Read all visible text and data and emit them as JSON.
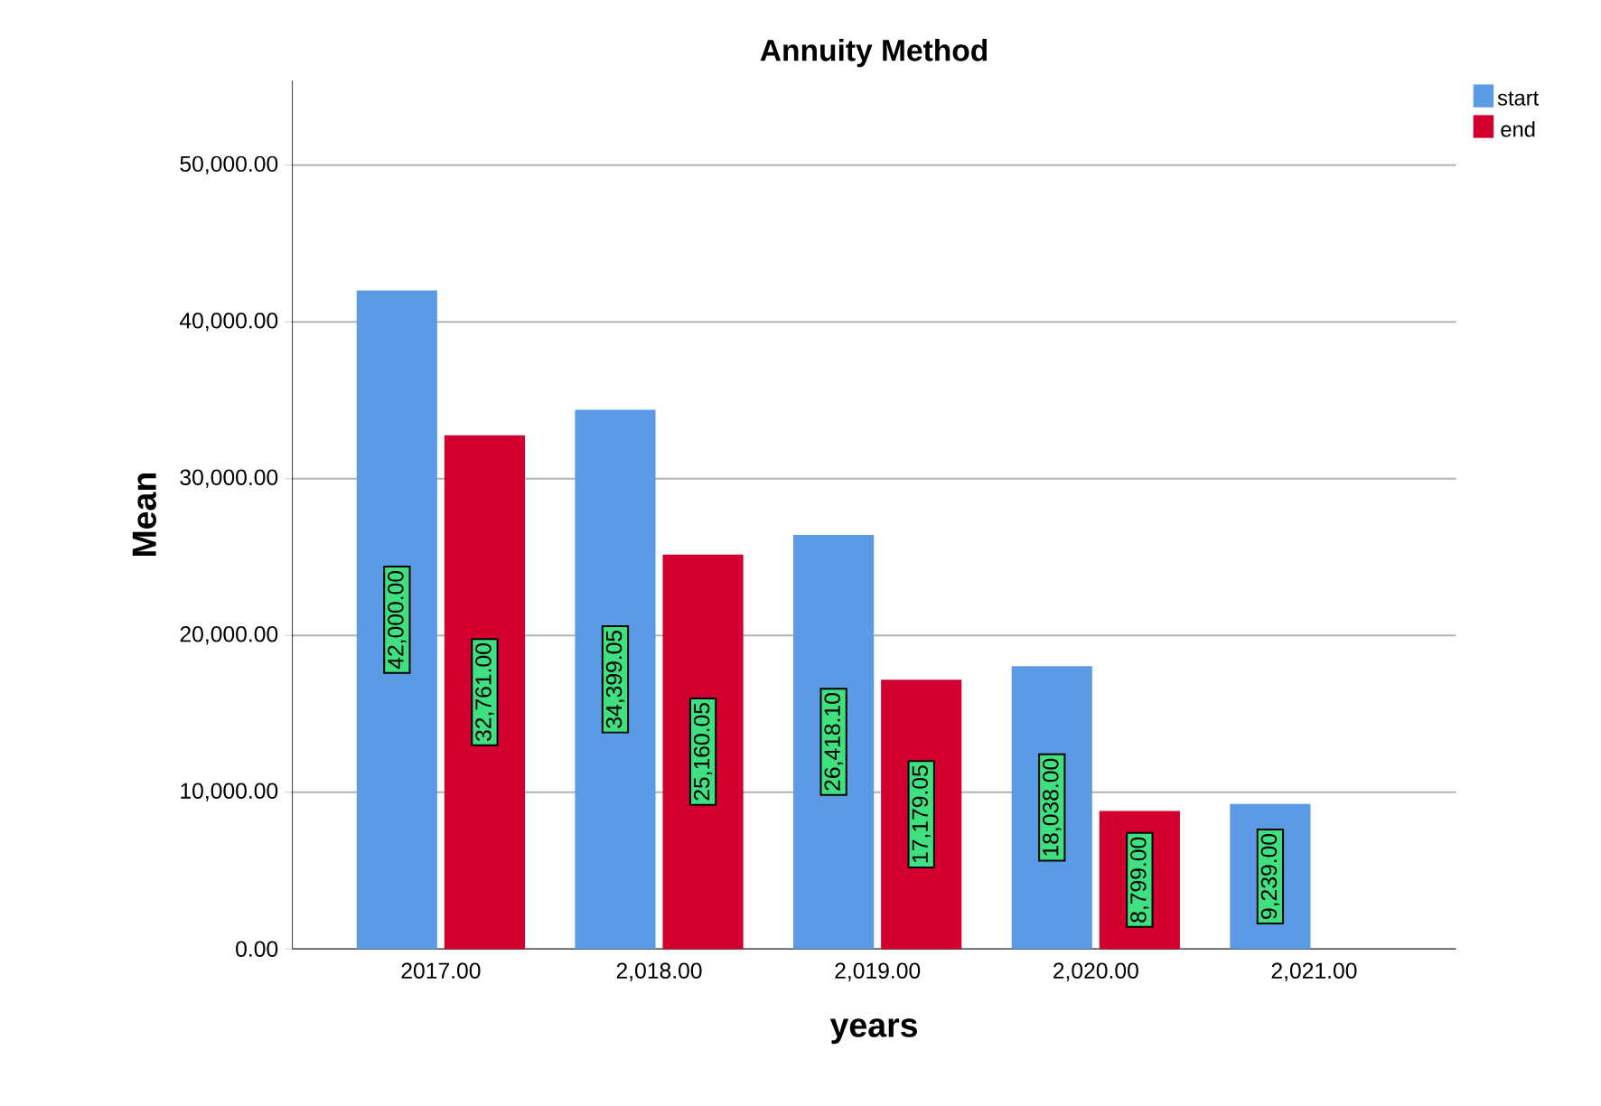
{
  "chart_data": {
    "type": "bar",
    "title": "Annuity Method",
    "xlabel": "years",
    "ylabel": "Mean",
    "categories": [
      "2017.00",
      "2,018.00",
      "2,019.00",
      "2,020.00",
      "2,021.00"
    ],
    "series": [
      {
        "name": "start",
        "color": "#5b9be6",
        "values": [
          42000,
          34399.05,
          26418.1,
          18038,
          9239
        ],
        "value_labels": [
          "42,000.00",
          "34,399.05",
          "26,418.10",
          "18,038.00",
          "9,239.00"
        ]
      },
      {
        "name": "end",
        "color": "#d2002f",
        "values": [
          32761,
          25160.05,
          17179.05,
          8799,
          null
        ],
        "value_labels": [
          "32,761.00",
          "25,160.05",
          "17,179.05",
          "8,799.00",
          null
        ]
      }
    ],
    "ylim": [
      0,
      55400
    ],
    "yticks": [
      {
        "value": 0,
        "label": "0.00"
      },
      {
        "value": 10000,
        "label": "10,000.00"
      },
      {
        "value": 20000,
        "label": "20,000.00"
      },
      {
        "value": 30000,
        "label": "30,000.00"
      },
      {
        "value": 40000,
        "label": "40,000.00"
      },
      {
        "value": 50000,
        "label": "50,000.00"
      }
    ],
    "grid": "y",
    "legend": "top right"
  }
}
